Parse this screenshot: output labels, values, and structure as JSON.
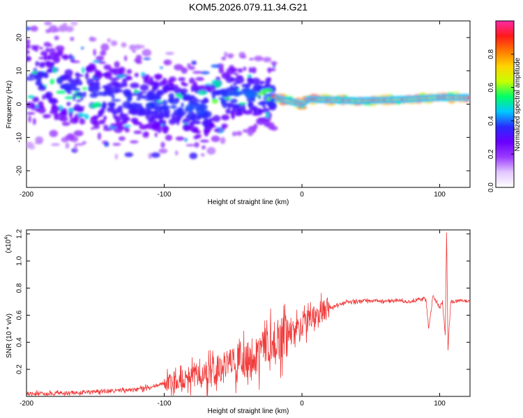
{
  "page_title": "KOM5.2026.079.11.34.G21",
  "chart_data": [
    {
      "type": "heatmap",
      "title": "KOM5.2026.079.11.34.G21",
      "xlabel": "Height of straight line (km)",
      "ylabel": "Frequency (Hz)",
      "xlim": [
        -200,
        122
      ],
      "ylim": [
        -25,
        25
      ],
      "x_ticks": [
        -200,
        -100,
        0,
        100
      ],
      "x_tick_labels": [
        "-200",
        "-100",
        "0",
        "100"
      ],
      "y_ticks": [
        -20,
        -10,
        0,
        10,
        20
      ],
      "y_tick_labels": [
        "-20",
        "-10",
        "0",
        "10",
        "20"
      ],
      "colorbar": {
        "label": "Normalized spectral amplitude",
        "range": [
          0,
          1
        ],
        "ticks": [
          0.0,
          0.2,
          0.4,
          0.6,
          0.8
        ],
        "tick_labels": [
          "0.0",
          "0.2",
          "0.4",
          "0.6",
          "0.8"
        ],
        "colors": [
          "#ffffff",
          "#e3c8ff",
          "#9b3cff",
          "#6a00ff",
          "#2a2aff",
          "#00c8ff",
          "#00ff66",
          "#c8ff00",
          "#ffd400",
          "#ff7a00",
          "#ff1a1a",
          "#ff2aa8"
        ]
      },
      "ridge": [
        {
          "x": -200,
          "f": 8
        },
        {
          "x": -180,
          "f": 6
        },
        {
          "x": -160,
          "f": 4
        },
        {
          "x": -140,
          "f": 2
        },
        {
          "x": -120,
          "f": 1
        },
        {
          "x": -100,
          "f": 0
        },
        {
          "x": -80,
          "f": -1
        },
        {
          "x": -70,
          "f": -2
        },
        {
          "x": -60,
          "f": 2
        },
        {
          "x": -40,
          "f": 3
        },
        {
          "x": -20,
          "f": 2
        },
        {
          "x": 0,
          "f": 0
        },
        {
          "x": 5,
          "f": 1.5
        },
        {
          "x": 40,
          "f": 1
        },
        {
          "x": 80,
          "f": 1.5
        },
        {
          "x": 100,
          "f": 2
        },
        {
          "x": 122,
          "f": 2
        }
      ]
    },
    {
      "type": "line",
      "xlabel": "Height of straight line (km)",
      "ylabel": "SNR (10 * v/v)",
      "y_scale_label": "(x10^4)",
      "y_scale_base": "(x10",
      "y_scale_exp": "4",
      "y_scale_close": ")",
      "xlim": [
        -200,
        122
      ],
      "ylim": [
        0,
        1.23
      ],
      "x_ticks": [
        -200,
        -100,
        0,
        100
      ],
      "x_tick_labels": [
        "-200",
        "-100",
        "0",
        "100"
      ],
      "y_ticks": [
        0.2,
        0.4,
        0.6,
        0.8,
        1.0,
        1.2
      ],
      "y_tick_labels": [
        "0.2",
        "0.4",
        "0.6",
        "0.8",
        "1.0",
        "1.2"
      ],
      "series": [
        {
          "name": "SNR",
          "color": "#f03a3a",
          "x": [
            -200,
            -180,
            -160,
            -140,
            -120,
            -110,
            -100,
            -90,
            -80,
            -70,
            -60,
            -50,
            -40,
            -30,
            -25,
            -20,
            -15,
            -10,
            -5,
            0,
            5,
            10,
            15,
            20,
            25,
            30,
            35,
            40,
            45,
            50,
            55,
            60,
            65,
            70,
            75,
            80,
            85,
            90,
            92,
            95,
            100,
            102,
            104,
            105,
            106,
            108,
            110,
            115,
            122
          ],
          "values": [
            0.02,
            0.02,
            0.03,
            0.04,
            0.05,
            0.07,
            0.1,
            0.13,
            0.15,
            0.17,
            0.2,
            0.23,
            0.26,
            0.32,
            0.36,
            0.4,
            0.42,
            0.45,
            0.48,
            0.52,
            0.56,
            0.6,
            0.63,
            0.65,
            0.67,
            0.69,
            0.7,
            0.7,
            0.71,
            0.7,
            0.71,
            0.7,
            0.7,
            0.71,
            0.7,
            0.7,
            0.72,
            0.72,
            0.5,
            0.74,
            0.66,
            0.7,
            0.45,
            1.22,
            0.35,
            0.7,
            0.7,
            0.71,
            0.7
          ]
        }
      ]
    }
  ]
}
